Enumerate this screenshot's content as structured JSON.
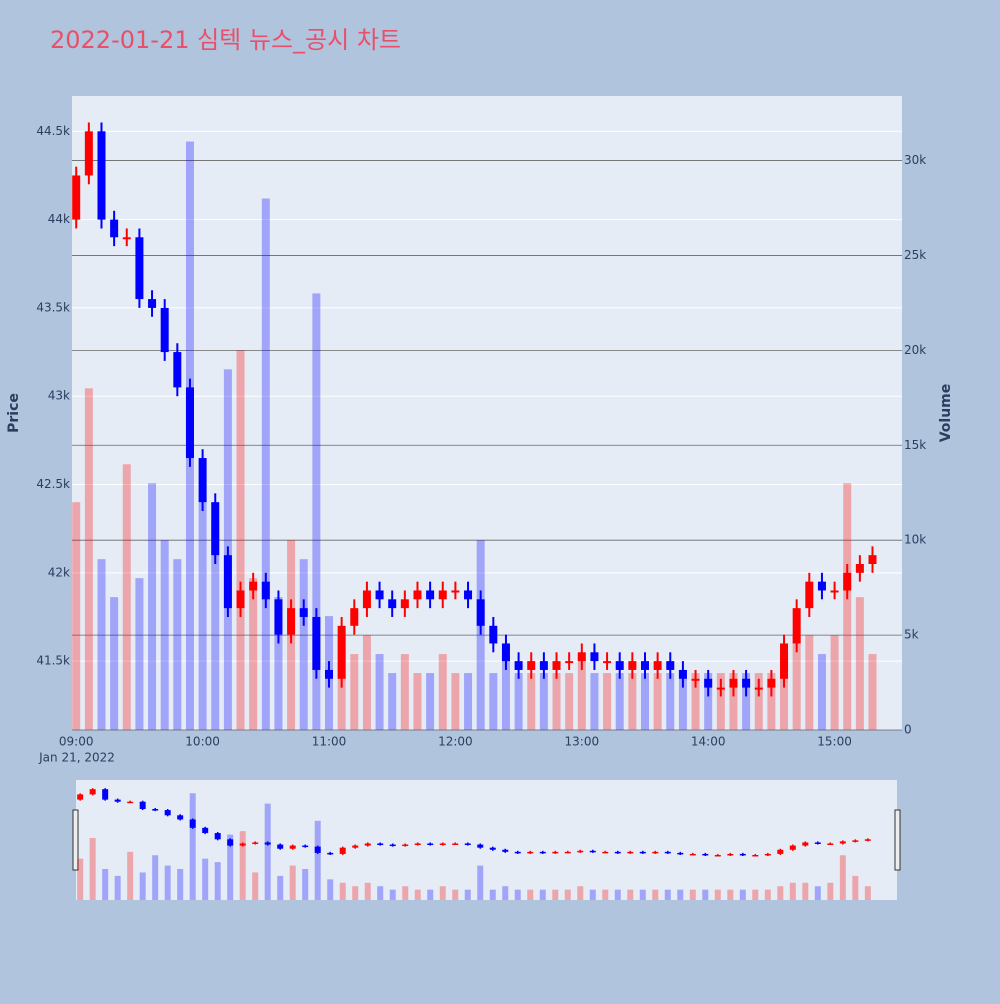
{
  "chart_data": {
    "type": "candlestick",
    "title": "2022-01-21 심텍 뉴스_공시 차트",
    "y_title": "Price",
    "y2_title": "Volume",
    "x_date_label": "Jan 21, 2022",
    "increasing_color": "#ff0000",
    "decreasing_color": "#0000ff",
    "x": [
      "2022-01-21 09:00",
      "2022-01-21 09:06",
      "2022-01-21 09:12",
      "2022-01-21 09:18",
      "2022-01-21 09:24",
      "2022-01-21 09:30",
      "2022-01-21 09:36",
      "2022-01-21 09:42",
      "2022-01-21 09:48",
      "2022-01-21 09:54",
      "2022-01-21 10:00",
      "2022-01-21 10:06",
      "2022-01-21 10:12",
      "2022-01-21 10:18",
      "2022-01-21 10:24",
      "2022-01-21 10:30",
      "2022-01-21 10:36",
      "2022-01-21 10:42",
      "2022-01-21 10:48",
      "2022-01-21 10:54",
      "2022-01-21 11:00",
      "2022-01-21 11:06",
      "2022-01-21 11:12",
      "2022-01-21 11:18",
      "2022-01-21 11:24",
      "2022-01-21 11:30",
      "2022-01-21 11:36",
      "2022-01-21 11:42",
      "2022-01-21 11:48",
      "2022-01-21 11:54",
      "2022-01-21 12:00",
      "2022-01-21 12:06",
      "2022-01-21 12:12",
      "2022-01-21 12:18",
      "2022-01-21 12:24",
      "2022-01-21 12:30",
      "2022-01-21 12:36",
      "2022-01-21 12:42",
      "2022-01-21 12:48",
      "2022-01-21 12:54",
      "2022-01-21 13:00",
      "2022-01-21 13:06",
      "2022-01-21 13:12",
      "2022-01-21 13:18",
      "2022-01-21 13:24",
      "2022-01-21 13:30",
      "2022-01-21 13:36",
      "2022-01-21 13:42",
      "2022-01-21 13:48",
      "2022-01-21 13:54",
      "2022-01-21 14:00",
      "2022-01-21 14:06",
      "2022-01-21 14:12",
      "2022-01-21 14:18",
      "2022-01-21 14:24",
      "2022-01-21 14:30",
      "2022-01-21 14:36",
      "2022-01-21 14:42",
      "2022-01-21 14:48",
      "2022-01-21 14:54",
      "2022-01-21 15:00",
      "2022-01-21 15:06",
      "2022-01-21 15:12",
      "2022-01-21 15:18"
    ],
    "open": [
      44000,
      44250,
      44500,
      44000,
      43900,
      43900,
      43550,
      43500,
      43250,
      43050,
      42650,
      42400,
      42100,
      41800,
      41900,
      41950,
      41850,
      41650,
      41800,
      41750,
      41450,
      41400,
      41700,
      41800,
      41900,
      41850,
      41800,
      41850,
      41900,
      41850,
      41900,
      41900,
      41850,
      41700,
      41600,
      41500,
      41450,
      41500,
      41450,
      41500,
      41500,
      41550,
      41500,
      41500,
      41450,
      41500,
      41450,
      41500,
      41450,
      41400,
      41400,
      41350,
      41350,
      41400,
      41350,
      41350,
      41400,
      41600,
      41800,
      41950,
      41900,
      41900,
      42000,
      42050
    ],
    "high": [
      44300,
      44550,
      44550,
      44050,
      43950,
      43950,
      43600,
      43550,
      43300,
      43100,
      42700,
      42450,
      42150,
      41950,
      42000,
      42000,
      41900,
      41850,
      41850,
      41800,
      41500,
      41750,
      41850,
      41950,
      41950,
      41900,
      41900,
      41950,
      41950,
      41950,
      41950,
      41950,
      41900,
      41750,
      41650,
      41550,
      41550,
      41550,
      41550,
      41550,
      41600,
      41600,
      41550,
      41550,
      41550,
      41550,
      41550,
      41550,
      41500,
      41450,
      41450,
      41400,
      41450,
      41450,
      41400,
      41450,
      41650,
      41850,
      42000,
      42000,
      41950,
      42050,
      42100,
      42150
    ],
    "low": [
      43950,
      44200,
      43950,
      43850,
      43850,
      43500,
      43450,
      43200,
      43000,
      42600,
      42350,
      42050,
      41750,
      41750,
      41850,
      41800,
      41600,
      41600,
      41700,
      41400,
      41350,
      41350,
      41650,
      41750,
      41800,
      41750,
      41750,
      41800,
      41800,
      41800,
      41850,
      41800,
      41650,
      41550,
      41450,
      41400,
      41400,
      41400,
      41400,
      41450,
      41450,
      41450,
      41450,
      41400,
      41400,
      41400,
      41400,
      41400,
      41350,
      41350,
      41300,
      41300,
      41300,
      41300,
      41300,
      41300,
      41350,
      41550,
      41750,
      41850,
      41850,
      41850,
      41950,
      42000
    ],
    "close": [
      44250,
      44500,
      44000,
      43900,
      43900,
      43550,
      43500,
      43250,
      43050,
      42650,
      42400,
      42100,
      41800,
      41900,
      41950,
      41850,
      41650,
      41800,
      41750,
      41450,
      41400,
      41700,
      41800,
      41900,
      41850,
      41800,
      41850,
      41900,
      41850,
      41900,
      41900,
      41850,
      41700,
      41600,
      41500,
      41450,
      41500,
      41450,
      41500,
      41500,
      41550,
      41500,
      41500,
      41450,
      41500,
      41450,
      41500,
      41450,
      41400,
      41400,
      41350,
      41350,
      41400,
      41350,
      41350,
      41400,
      41600,
      41800,
      41950,
      41900,
      41900,
      42000,
      42050,
      42100
    ],
    "volume": [
      12000,
      18000,
      9000,
      7000,
      14000,
      8000,
      13000,
      10000,
      9000,
      31000,
      12000,
      11000,
      19000,
      20000,
      8000,
      28000,
      7000,
      10000,
      9000,
      23000,
      6000,
      5000,
      4000,
      5000,
      4000,
      3000,
      4000,
      3000,
      3000,
      4000,
      3000,
      3000,
      10000,
      3000,
      4000,
      3000,
      3000,
      3000,
      3000,
      3000,
      4000,
      3000,
      3000,
      3000,
      3000,
      3000,
      3000,
      3000,
      3000,
      3000,
      3000,
      3000,
      3000,
      3000,
      3000,
      3000,
      4000,
      5000,
      5000,
      4000,
      5000,
      13000,
      7000,
      4000
    ],
    "xlim": [
      "2022-01-21 08:58",
      "2022-01-21 15:32"
    ],
    "xticks": [
      {
        "value": "2022-01-21 09:00",
        "label": "09:00"
      },
      {
        "value": "2022-01-21 10:00",
        "label": "10:00"
      },
      {
        "value": "2022-01-21 11:00",
        "label": "11:00"
      },
      {
        "value": "2022-01-21 12:00",
        "label": "12:00"
      },
      {
        "value": "2022-01-21 13:00",
        "label": "13:00"
      },
      {
        "value": "2022-01-21 14:00",
        "label": "14:00"
      },
      {
        "value": "2022-01-21 15:00",
        "label": "15:00"
      }
    ],
    "ylim": [
      41110,
      44700
    ],
    "yticks": [
      {
        "value": 41500,
        "label": "41.5k"
      },
      {
        "value": 42000,
        "label": "42k"
      },
      {
        "value": 42500,
        "label": "42.5k"
      },
      {
        "value": 43000,
        "label": "43k"
      },
      {
        "value": 43500,
        "label": "43.5k"
      },
      {
        "value": 44000,
        "label": "44k"
      },
      {
        "value": 44500,
        "label": "44.5k"
      }
    ],
    "y2lim": [
      0,
      33400
    ],
    "y2ticks": [
      0,
      {
        "value": 5000,
        "label": "5k"
      },
      {
        "value": 10000,
        "label": "10k"
      },
      {
        "value": 15000,
        "label": "15k"
      },
      {
        "value": 20000,
        "label": "20k"
      },
      {
        "value": 25000,
        "label": "25k"
      },
      {
        "value": 30000,
        "label": "30k"
      }
    ]
  }
}
